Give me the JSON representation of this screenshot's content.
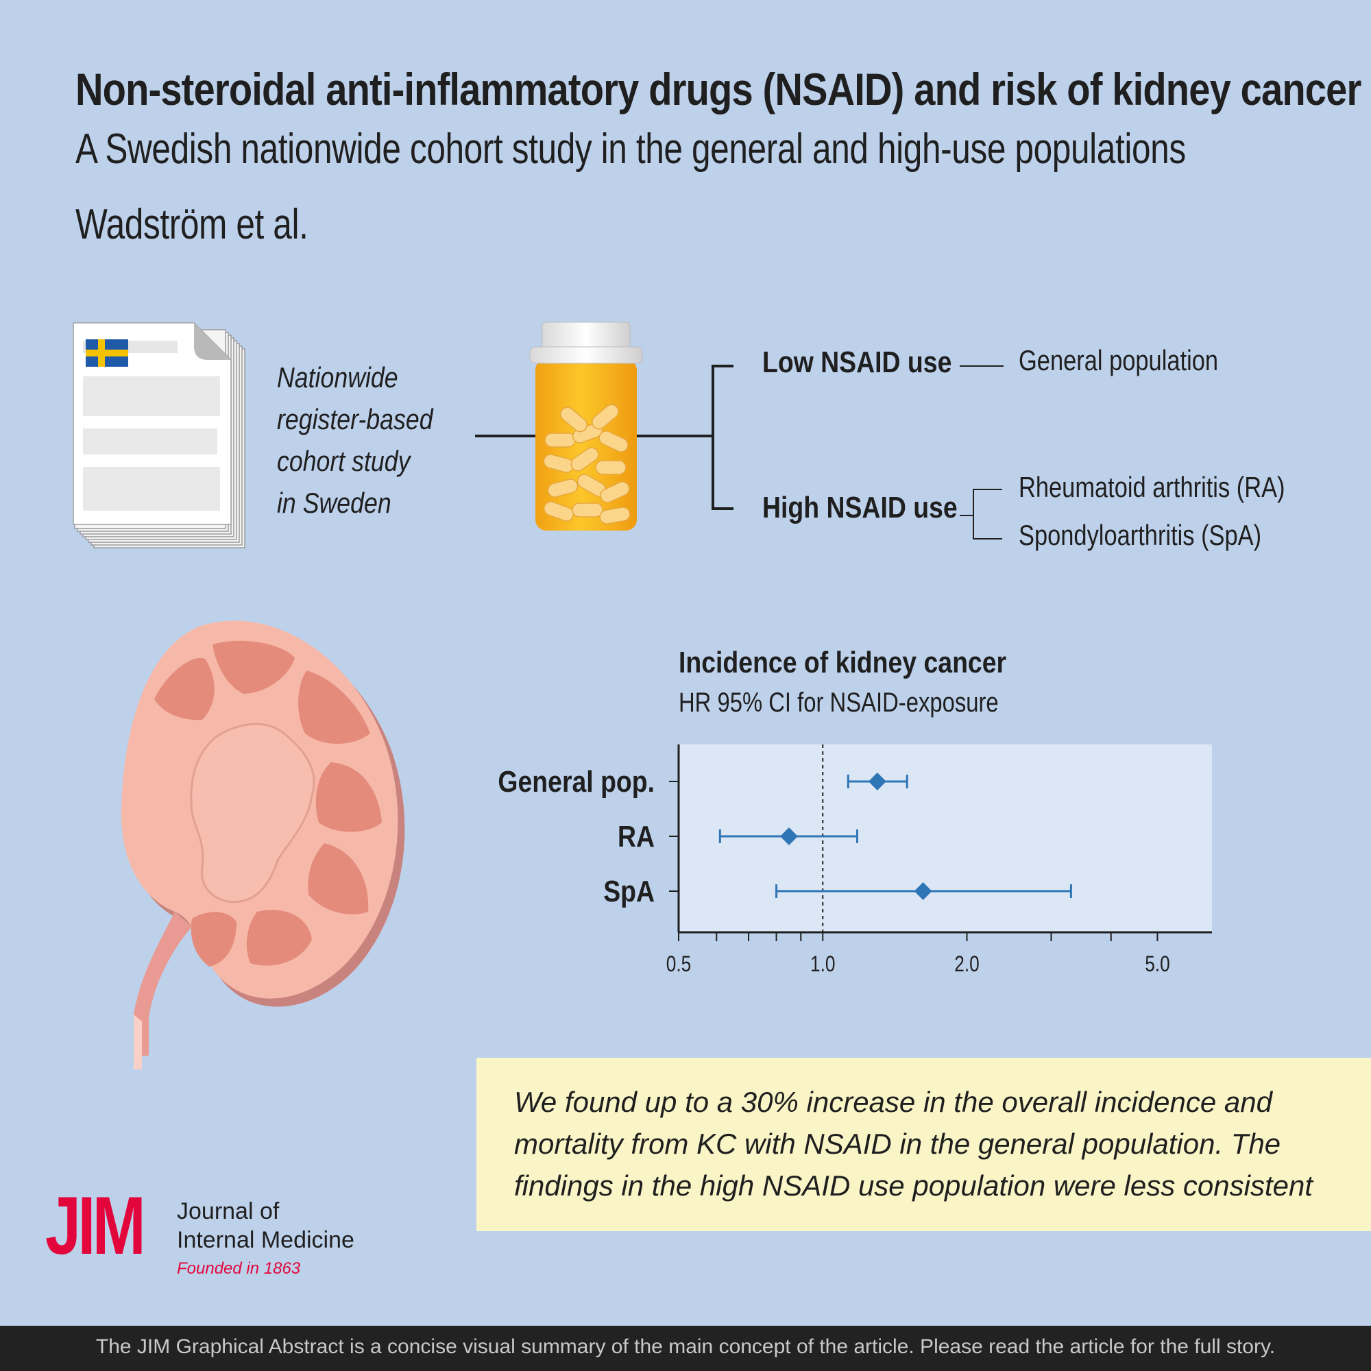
{
  "header": {
    "title": "Non-steroidal anti-inflammatory drugs (NSAID) and risk of kidney cancer -",
    "subtitle": "A Swedish nationwide cohort study in the general and high-use populations",
    "authors": "Wadström et al."
  },
  "study": {
    "lines": [
      "Nationwide",
      "register-based",
      "cohort study",
      "in Sweden"
    ]
  },
  "exposure": {
    "low_label": "Low NSAID use",
    "high_label": "High NSAID use",
    "general_population": "General population",
    "ra": "Rheumatoid arthritis (RA)",
    "spa": "Spondyloarthritis (SpA)"
  },
  "chart_data": {
    "type": "forest",
    "title": "Incidence of kidney cancer",
    "subtitle": "HR 95% CI for NSAID-exposure",
    "x_scale": "log",
    "xlim": [
      0.5,
      6.5
    ],
    "x_ticks": [
      0.5,
      0.6,
      0.7,
      0.8,
      0.9,
      1.0,
      2.0,
      3.0,
      4.0,
      5.0
    ],
    "x_tick_labels": [
      "0.5",
      "",
      "",
      "",
      "",
      "1.0",
      "2.0",
      "",
      "",
      "5.0"
    ],
    "reference_line": 1.0,
    "rows": [
      {
        "label": "General pop.",
        "hr": 1.3,
        "lower": 1.13,
        "upper": 1.5
      },
      {
        "label": "RA",
        "hr": 0.85,
        "lower": 0.61,
        "upper": 1.18
      },
      {
        "label": "SpA",
        "hr": 1.62,
        "lower": 0.8,
        "upper": 3.3
      }
    ],
    "marker_color": "#2e75b6",
    "panel_color": "#dce7f5"
  },
  "finding": {
    "text": "We found up to a 30% increase in the overall incidence and mortality from KC with NSAID in the general population. The findings in the high NSAID use population were less consistent"
  },
  "journal": {
    "letters": "JIM",
    "name_line1": "Journal of",
    "name_line2": "Internal Medicine",
    "founded": "Founded in 1863",
    "color": "#e2063c"
  },
  "footer": {
    "text": "The JIM Graphical Abstract is a concise visual summary of the main concept of the article. Please read the article for the full story."
  },
  "icons": [
    "document-stack-icon",
    "sweden-flag-icon",
    "pill-bottle-icon",
    "kidney-icon"
  ]
}
